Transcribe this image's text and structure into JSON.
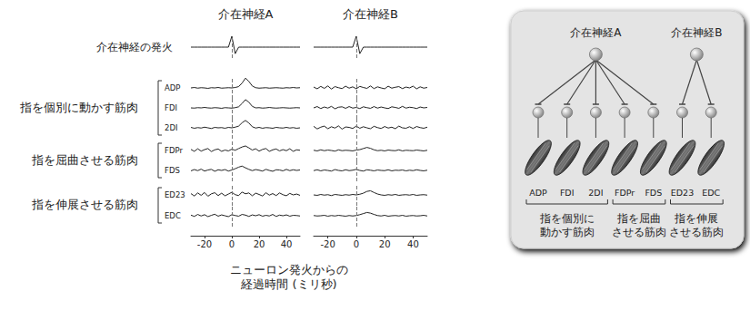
{
  "figure": {
    "row_label": "介在神経の発火",
    "groups": [
      {
        "label": "指を個別に動かす筋肉",
        "members": [
          "ADP",
          "FDI",
          "2DI"
        ]
      },
      {
        "label": "指を屈曲させる筋肉",
        "members": [
          "FDPr",
          "FDS"
        ]
      },
      {
        "label": "指を伸展させる筋肉",
        "members": [
          "ED23",
          "EDC"
        ]
      }
    ],
    "xlabel": [
      "ニューロン発火からの",
      "経過時間 (ミリ秒)"
    ]
  },
  "chart_data": [
    {
      "type": "line",
      "title": "介在神経A",
      "color": "#222222",
      "tick_labels": "x",
      "xlim": [
        -30,
        50
      ],
      "xticks": [
        -20,
        0,
        20,
        40
      ],
      "ylim": [
        0,
        10
      ],
      "x": [
        -30,
        -27.5,
        -25,
        -22.5,
        -20,
        -17.5,
        -15,
        -12.5,
        -10,
        -7.5,
        -5,
        -2.5,
        0,
        2.5,
        5,
        7.5,
        10,
        12.5,
        15,
        17.5,
        20,
        22.5,
        25,
        27.5,
        30,
        32.5,
        35,
        37.5,
        40,
        42.5,
        45,
        47.5,
        50
      ],
      "series": [
        {
          "name": "介在神経の発火",
          "values": [
            5,
            5,
            5,
            5,
            5,
            5,
            5,
            5,
            5,
            5,
            5,
            5,
            10,
            2,
            5,
            5,
            5,
            5,
            5,
            5,
            5,
            5,
            5,
            5,
            5,
            5,
            5,
            5,
            5,
            5,
            5,
            5,
            5
          ]
        },
        {
          "name": "ADP",
          "values": [
            5,
            5.2,
            4.9,
            5.1,
            5,
            4.8,
            5.1,
            5,
            5.2,
            4.9,
            5,
            5.1,
            5,
            5.2,
            5.6,
            7.2,
            9.5,
            8,
            5.9,
            5.1,
            4.9,
            5,
            5.1,
            4.9,
            5,
            5.1,
            5,
            4.9,
            5.1,
            5,
            5.2,
            5,
            5.1
          ]
        },
        {
          "name": "FDI",
          "values": [
            5,
            4.9,
            5.1,
            5,
            5.2,
            5,
            4.9,
            5.1,
            5,
            4.8,
            5.1,
            5,
            4.9,
            5.1,
            5.5,
            7,
            8.8,
            7.6,
            5.7,
            5,
            5.1,
            4.9,
            5,
            5.2,
            5,
            4.9,
            5,
            5.1,
            5,
            4.9,
            5,
            5.1,
            5
          ]
        },
        {
          "name": "2DI",
          "values": [
            5.2,
            4.8,
            5.1,
            4.9,
            5.3,
            5,
            4.7,
            5.2,
            5,
            5.1,
            4.8,
            5.2,
            5,
            5.3,
            5.8,
            7.3,
            8.4,
            7.2,
            5.5,
            4.9,
            5.2,
            4.8,
            5.1,
            5,
            4.8,
            5.2,
            5,
            4.9,
            5.2,
            4.9,
            5.1,
            4.8,
            5
          ]
        },
        {
          "name": "FDPr",
          "values": [
            5.5,
            4.6,
            5.8,
            4.7,
            5.4,
            5.9,
            4.5,
            5.3,
            5.7,
            4.6,
            5.2,
            4.8,
            5.6,
            5.1,
            5.9,
            6.6,
            7.1,
            6.2,
            5.2,
            5.8,
            4.7,
            5.5,
            5.9,
            4.6,
            5.3,
            5.7,
            4.8,
            5.4,
            4.9,
            5.8,
            4.6,
            5.3,
            5.1
          ]
        },
        {
          "name": "FDS",
          "values": [
            4.8,
            5.4,
            4.9,
            5.6,
            4.7,
            5.2,
            5.5,
            4.6,
            5.3,
            5,
            5.4,
            4.7,
            5.2,
            5.8,
            6.5,
            7,
            6.2,
            5.5,
            4.9,
            5.4,
            5.1,
            4.7,
            5.5,
            5,
            4.6,
            5.3,
            5.2,
            4.8,
            5.5,
            4.9,
            5.3,
            5,
            5.2
          ]
        },
        {
          "name": "ED23",
          "values": [
            5.6,
            4.5,
            5.9,
            4.8,
            6.1,
            4.4,
            5.5,
            6,
            4.7,
            5.8,
            4.6,
            5.4,
            6.2,
            5.1,
            4.7,
            6.3,
            5.5,
            5.9,
            4.6,
            5.8,
            5.2,
            4.5,
            6,
            4.9,
            5.6,
            4.7,
            5.9,
            5.1,
            4.6,
            5.7,
            5,
            5.4,
            4.8
          ]
        },
        {
          "name": "EDC",
          "values": [
            5.3,
            4.7,
            5.6,
            4.9,
            5.5,
            4.6,
            5.2,
            5.7,
            4.8,
            5.4,
            5,
            4.6,
            5.5,
            5.1,
            4.8,
            5.6,
            5.3,
            4.7,
            5.4,
            5,
            5.5,
            4.8,
            5.2,
            4.9,
            5.6,
            4.7,
            5.3,
            5,
            5.4,
            4.8,
            5.2,
            5.1,
            4.9
          ]
        }
      ]
    },
    {
      "type": "line",
      "title": "介在神経B",
      "color": "#222222",
      "tick_labels": "x",
      "xlim": [
        -30,
        50
      ],
      "xticks": [
        -20,
        0,
        20,
        40
      ],
      "ylim": [
        0,
        10
      ],
      "x": [
        -30,
        -27.5,
        -25,
        -22.5,
        -20,
        -17.5,
        -15,
        -12.5,
        -10,
        -7.5,
        -5,
        -2.5,
        0,
        2.5,
        5,
        7.5,
        10,
        12.5,
        15,
        17.5,
        20,
        22.5,
        25,
        27.5,
        30,
        32.5,
        35,
        37.5,
        40,
        42.5,
        45,
        47.5,
        50
      ],
      "series": [
        {
          "name": "介在神経の発火",
          "values": [
            5,
            5,
            5,
            5,
            5,
            5,
            5,
            5,
            5,
            5,
            5,
            5,
            10,
            2,
            5,
            5,
            5,
            5,
            5,
            5,
            5,
            5,
            5,
            5,
            5,
            5,
            5,
            5,
            5,
            5,
            5,
            5,
            5
          ]
        },
        {
          "name": "ADP",
          "values": [
            5.4,
            4.6,
            5.7,
            4.8,
            5.9,
            4.5,
            5.6,
            5.1,
            4.7,
            5.8,
            4.9,
            5.5,
            4.6,
            5.7,
            5.2,
            4.8,
            5.9,
            4.7,
            5.5,
            5,
            4.6,
            5.8,
            4.9,
            5.3,
            5.6,
            4.7,
            5.4,
            5,
            5.8,
            4.6,
            5.5,
            4.9,
            5.2
          ]
        },
        {
          "name": "FDI",
          "values": [
            5,
            5.6,
            4.7,
            5.4,
            4.9,
            5.7,
            4.6,
            5.3,
            5.5,
            4.8,
            5.6,
            4.9,
            5.2,
            4.7,
            5.5,
            5.1,
            4.8,
            5.6,
            4.9,
            5.4,
            5,
            4.7,
            5.5,
            5.2,
            4.8,
            5.7,
            4.9,
            5.3,
            5.1,
            4.7,
            5.4,
            5,
            5.2
          ]
        },
        {
          "name": "2DI",
          "values": [
            5.7,
            4.5,
            5.3,
            5.8,
            4.6,
            5.5,
            4.9,
            5.9,
            4.4,
            5.4,
            5.2,
            4.7,
            5.8,
            4.8,
            5.5,
            5,
            4.6,
            5.7,
            5.1,
            4.7,
            5.6,
            4.9,
            5.3,
            4.6,
            5.8,
            5,
            4.8,
            5.5,
            4.7,
            5.6,
            5.1,
            4.8,
            5.3
          ]
        },
        {
          "name": "FDPr",
          "values": [
            5.1,
            4.8,
            5.3,
            4.9,
            5.2,
            5,
            4.7,
            5.3,
            4.9,
            5.1,
            5,
            4.8,
            5.2,
            5.4,
            5.9,
            6.4,
            6,
            5.3,
            4.9,
            5.1,
            4.8,
            5.2,
            5,
            4.9,
            5.3,
            4.8,
            5.1,
            5,
            4.9,
            5.2,
            5,
            4.8,
            5.1
          ]
        },
        {
          "name": "FDS",
          "values": [
            4.9,
            5.3,
            4.8,
            5.2,
            5,
            4.7,
            5.4,
            5,
            4.8,
            5.3,
            4.9,
            5.1,
            5.5,
            5,
            4.7,
            5.3,
            5.1,
            4.8,
            5.2,
            5,
            4.9,
            5.3,
            4.8,
            5.1,
            5,
            5.2,
            4.8,
            5.1,
            4.9,
            5.3,
            5,
            4.8,
            5.1
          ]
        },
        {
          "name": "ED23",
          "values": [
            5,
            4.8,
            5.2,
            4.9,
            5.1,
            4.7,
            5.2,
            5,
            4.8,
            5.1,
            4.9,
            5.2,
            5,
            5.3,
            5.8,
            6.6,
            6.9,
            6.1,
            5.4,
            5,
            4.8,
            5.1,
            4.9,
            5.2,
            4.8,
            5,
            5.1,
            4.9,
            5.2,
            4.8,
            5,
            5.1,
            4.9
          ]
        },
        {
          "name": "EDC",
          "values": [
            5.1,
            4.9,
            5,
            5.2,
            4.8,
            5.1,
            4.9,
            5.2,
            5,
            4.8,
            5.1,
            4.9,
            5.1,
            5.5,
            6,
            6.5,
            6.2,
            5.6,
            5.1,
            4.9,
            5.2,
            4.8,
            5,
            5.1,
            4.9,
            5.2,
            4.8,
            5,
            5.1,
            4.9,
            5,
            5.2,
            4.9
          ]
        }
      ]
    }
  ],
  "diagram": {
    "interneurons": [
      {
        "label": "介在神経A",
        "targets": [
          "ADP",
          "FDI",
          "2DI",
          "FDPr",
          "FDS"
        ]
      },
      {
        "label": "介在神経B",
        "targets": [
          "ED23",
          "EDC"
        ]
      }
    ],
    "groups": [
      {
        "lines": [
          "指を個別に",
          "動かす筋肉"
        ],
        "members": [
          "ADP",
          "FDI",
          "2DI"
        ]
      },
      {
        "lines": [
          "指を屈曲",
          "させる筋肉"
        ],
        "members": [
          "FDPr",
          "FDS"
        ]
      },
      {
        "lines": [
          "指を伸展",
          "させる筋肉"
        ],
        "members": [
          "ED23",
          "EDC"
        ]
      }
    ]
  }
}
